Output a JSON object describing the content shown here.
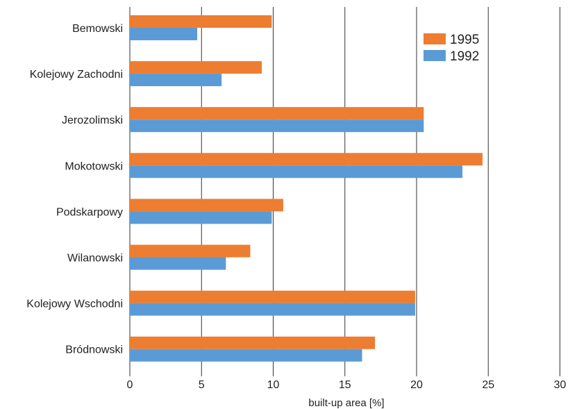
{
  "chart_data": {
    "type": "bar",
    "orientation": "horizontal",
    "categories": [
      "Bemowski",
      "Kolejowy Zachodni",
      "Jerozolimski",
      "Mokotowski",
      "Podskarpowy",
      "Wilanowski",
      "Kolejowy Wschodni",
      "Bródnowski"
    ],
    "series": [
      {
        "name": "1995",
        "color": "#ED7D31",
        "values": [
          9.9,
          9.2,
          20.5,
          24.6,
          10.7,
          8.4,
          19.9,
          17.1
        ]
      },
      {
        "name": "1992",
        "color": "#5B9BD5",
        "values": [
          4.7,
          6.4,
          20.5,
          23.2,
          9.9,
          6.7,
          19.9,
          16.2
        ]
      }
    ],
    "xlabel": "built-up area [%]",
    "ylabel": "",
    "title": "",
    "xlim": [
      0,
      30
    ],
    "xticks": [
      0,
      5,
      10,
      15,
      20,
      25,
      30
    ],
    "grid": "vertical",
    "legend_position": "top-right"
  }
}
